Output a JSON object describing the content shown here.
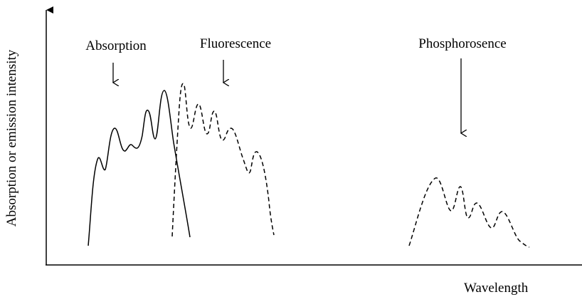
{
  "figure": {
    "y_axis_label": "Absorption or emission intensity",
    "x_axis_label": "Wavelength",
    "labels": {
      "absorption": "Absorption",
      "fluorescence": "Fluorescence",
      "phosphorescence": "Phosphorosence"
    },
    "curves": [
      {
        "key": "absorption",
        "style": "solid"
      },
      {
        "key": "fluorescence",
        "style": "dashed"
      },
      {
        "key": "phosphorescence",
        "style": "dashed"
      }
    ],
    "line_color": "#000000"
  }
}
